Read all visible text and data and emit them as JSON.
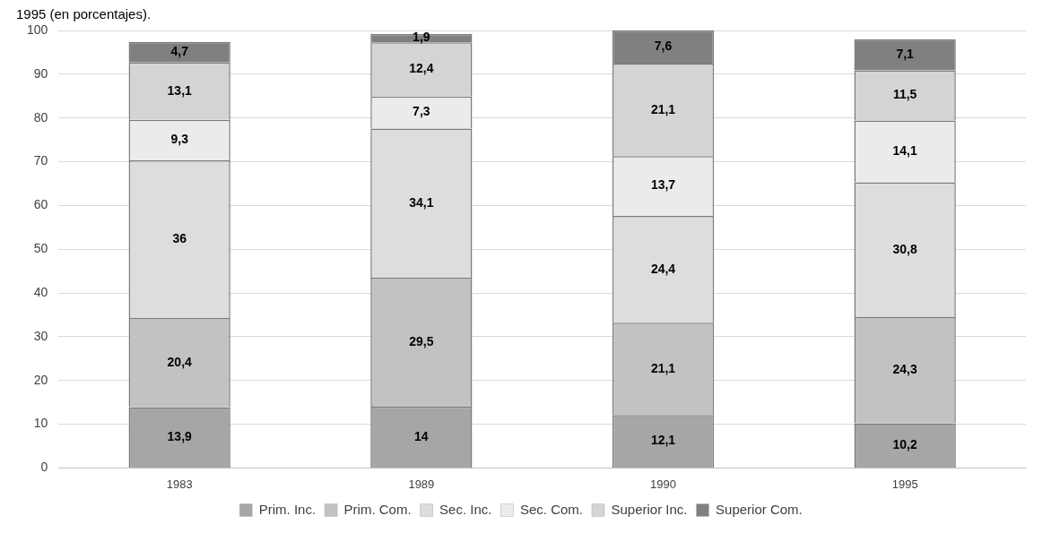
{
  "chart_data": {
    "type": "bar",
    "title": "1995 (en porcentajes).",
    "categories": [
      "1983",
      "1989",
      "1990",
      "1995"
    ],
    "stacked": true,
    "series": [
      {
        "name": "Prim. Inc.",
        "color": "#a6a6a6",
        "values": [
          13.9,
          14,
          12.1,
          10.2
        ],
        "value_labels": [
          "13,9",
          "14",
          "12,1",
          "10,2"
        ]
      },
      {
        "name": "Prim. Com.",
        "color": "#c2c2c2",
        "values": [
          20.4,
          29.5,
          21.1,
          24.3
        ],
        "value_labels": [
          "20,4",
          "29,5",
          "21,1",
          "24,3"
        ]
      },
      {
        "name": "Sec. Inc.",
        "color": "#dddddd",
        "values": [
          36,
          34.1,
          24.4,
          30.8
        ],
        "value_labels": [
          "36",
          "34,1",
          "24,4",
          "30,8"
        ]
      },
      {
        "name": "Sec. Com.",
        "color": "#ebebeb",
        "values": [
          9.3,
          7.3,
          13.7,
          14.1
        ],
        "value_labels": [
          "9,3",
          "7,3",
          "13,7",
          "14,1"
        ]
      },
      {
        "name": "Superior Inc.",
        "color": "#d4d4d4",
        "values": [
          13.1,
          12.4,
          21.1,
          11.5
        ],
        "value_labels": [
          "13,1",
          "12,4",
          "21,1",
          "11,5"
        ]
      },
      {
        "name": "Superior Com.",
        "color": "#808080",
        "values": [
          4.7,
          1.9,
          7.6,
          7.1
        ],
        "value_labels": [
          "4,7",
          "1,9",
          "7,6",
          "7,1"
        ]
      }
    ],
    "ylim": [
      0,
      100
    ],
    "yticks": [
      0,
      10,
      20,
      30,
      40,
      50,
      60,
      70,
      80,
      90,
      100
    ],
    "grid": "y",
    "legend": "bottom"
  }
}
